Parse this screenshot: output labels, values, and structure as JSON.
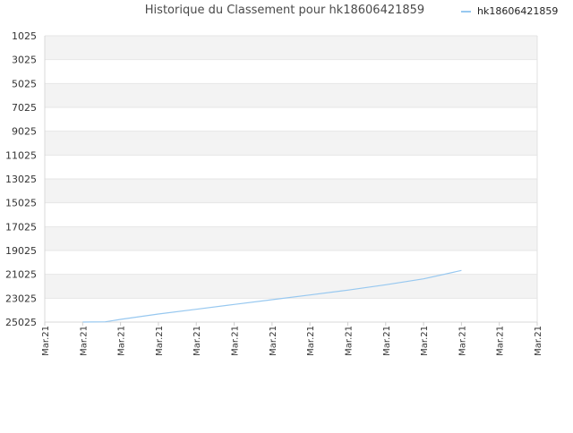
{
  "colors": {
    "series": "#97c8f0",
    "band_alt": "#f3f3f3",
    "band_first": "#ebebeb",
    "grid": "#e6e6e6",
    "axis_text": "#333333"
  },
  "chart_data": {
    "type": "line",
    "title": "Historique du Classement pour hk18606421859",
    "xlabel": "",
    "ylabel": "",
    "y_reversed": true,
    "ylim": [
      25025,
      1025
    ],
    "y_ticks": [
      1025,
      3025,
      5025,
      7025,
      9025,
      11025,
      13025,
      15025,
      17025,
      19025,
      21025,
      23025,
      25025
    ],
    "x_tick_labels": [
      "Mar.21",
      "Mar.21",
      "Mar.21",
      "Mar.21",
      "Mar.21",
      "Mar.21",
      "Mar.21",
      "Mar.21",
      "Mar.21",
      "Mar.21",
      "Mar.21",
      "Mar.21",
      "Mar.21",
      "Mar.21"
    ],
    "grid": true,
    "legend_position": "top-right",
    "series": [
      {
        "name": "hk18606421859",
        "x": [
          1,
          1.6,
          2,
          3,
          4,
          5,
          6,
          7,
          8,
          9,
          10,
          11
        ],
        "values": [
          25025,
          25000,
          24800,
          24350,
          23950,
          23550,
          23150,
          22750,
          22350,
          21900,
          21400,
          20700
        ]
      }
    ]
  }
}
